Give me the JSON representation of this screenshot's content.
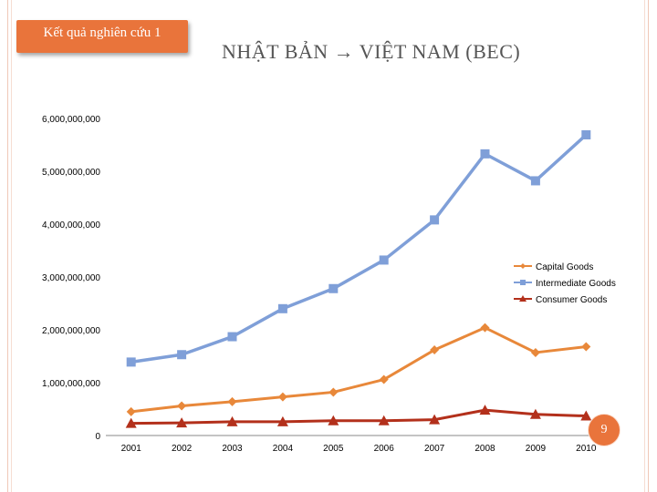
{
  "badge": {
    "label": "Kết quả nghiên cứu 1"
  },
  "title": "NHẬT BẢN → VIỆT NAM (BEC)",
  "page_number": "9",
  "colors": {
    "accent": "#e9743b",
    "capital": "#e8883a",
    "intermediate": "#7f9fd8",
    "consumer": "#b3301b"
  },
  "chart_data": {
    "type": "line",
    "title": "NHẬT BẢN → VIỆT NAM (BEC)",
    "xlabel": "",
    "ylabel": "",
    "categories": [
      "2001",
      "2002",
      "2003",
      "2004",
      "2005",
      "2006",
      "2007",
      "2008",
      "2009",
      "2010"
    ],
    "ylim": [
      0,
      6000000000
    ],
    "yticks": [
      0,
      1000000000,
      2000000000,
      3000000000,
      4000000000,
      5000000000,
      6000000000
    ],
    "ytick_labels": [
      "0",
      "1,000,000,000",
      "2,000,000,000",
      "3,000,000,000",
      "4,000,000,000",
      "5,000,000,000",
      "6,000,000,000"
    ],
    "grid": false,
    "legend_position": "right",
    "series": [
      {
        "name": "Capital Goods",
        "marker": "diamond",
        "values": [
          450000000,
          560000000,
          640000000,
          730000000,
          820000000,
          1060000000,
          1620000000,
          2040000000,
          1570000000,
          1680000000
        ]
      },
      {
        "name": "Intermediate Goods",
        "marker": "square",
        "values": [
          1390000000,
          1530000000,
          1870000000,
          2400000000,
          2780000000,
          3320000000,
          4080000000,
          5330000000,
          4820000000,
          5690000000
        ]
      },
      {
        "name": "Consumer Goods",
        "marker": "triangle",
        "values": [
          230000000,
          240000000,
          260000000,
          260000000,
          280000000,
          280000000,
          300000000,
          480000000,
          400000000,
          370000000
        ]
      }
    ]
  }
}
